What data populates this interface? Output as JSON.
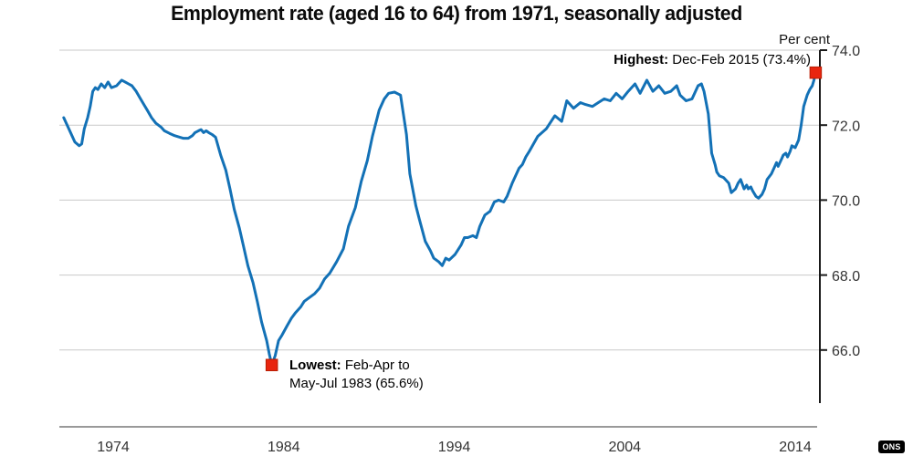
{
  "header": {
    "title": "Employment rate (aged 16 to 64) from 1971, seasonally adjusted",
    "unit_label": "Per cent"
  },
  "annotations": {
    "highest_label": "Highest:",
    "highest_text": " Dec-Feb 2015 (73.4%)",
    "lowest_label": "Lowest:",
    "lowest_text_line1": " Feb-Apr to",
    "lowest_text_line2": "May-Jul 1983 (65.6%)"
  },
  "footer": {
    "logo_text": "ONS"
  },
  "colors": {
    "line": "#1371b6",
    "marker": "#e8250f",
    "marker_border": "#b81c02",
    "grid": "#c9c9c9",
    "x_axis": "#999999",
    "y_axis": "#1a1a1a",
    "tick_text": "#333333"
  },
  "chart_data": {
    "type": "line",
    "title": "Employment rate (aged 16 to 64) from 1971, seasonally adjusted",
    "xlabel": "",
    "ylabel": "Per cent",
    "x_ticks": [
      "1974",
      "1984",
      "1994",
      "2004",
      "2014"
    ],
    "y_ticks": [
      "74.0",
      "72.0",
      "70.0",
      "68.0",
      "66.0"
    ],
    "xlim": [
      1971,
      2015.6
    ],
    "ylim": [
      64.6,
      74.0
    ],
    "grid": true,
    "legend": false,
    "markers": [
      {
        "name": "highest",
        "year": 2015.2,
        "value": 73.4,
        "label": "Dec-Feb 2015 (73.4%)"
      },
      {
        "name": "lowest",
        "year": 1983.3,
        "value": 65.6,
        "label": "Feb-Apr to May-Jul 1983 (65.6%)"
      }
    ],
    "points": [
      [
        1971.1,
        72.2
      ],
      [
        1971.4,
        71.9
      ],
      [
        1971.75,
        71.55
      ],
      [
        1972.0,
        71.45
      ],
      [
        1972.15,
        71.5
      ],
      [
        1972.3,
        71.9
      ],
      [
        1972.5,
        72.2
      ],
      [
        1972.65,
        72.5
      ],
      [
        1972.8,
        72.9
      ],
      [
        1972.95,
        73.0
      ],
      [
        1973.1,
        72.95
      ],
      [
        1973.3,
        73.1
      ],
      [
        1973.5,
        73.0
      ],
      [
        1973.7,
        73.15
      ],
      [
        1973.9,
        73.0
      ],
      [
        1974.2,
        73.05
      ],
      [
        1974.5,
        73.2
      ],
      [
        1974.7,
        73.15
      ],
      [
        1974.9,
        73.1
      ],
      [
        1975.1,
        73.05
      ],
      [
        1975.35,
        72.9
      ],
      [
        1975.6,
        72.7
      ],
      [
        1975.8,
        72.55
      ],
      [
        1976.0,
        72.4
      ],
      [
        1976.25,
        72.2
      ],
      [
        1976.5,
        72.05
      ],
      [
        1976.8,
        71.95
      ],
      [
        1977.0,
        71.85
      ],
      [
        1977.3,
        71.78
      ],
      [
        1977.6,
        71.72
      ],
      [
        1977.9,
        71.68
      ],
      [
        1978.1,
        71.65
      ],
      [
        1978.4,
        71.65
      ],
      [
        1978.65,
        71.72
      ],
      [
        1978.8,
        71.8
      ],
      [
        1979.0,
        71.85
      ],
      [
        1979.15,
        71.88
      ],
      [
        1979.3,
        71.8
      ],
      [
        1979.45,
        71.85
      ],
      [
        1979.6,
        71.8
      ],
      [
        1979.8,
        71.75
      ],
      [
        1980.0,
        71.68
      ],
      [
        1980.3,
        71.2
      ],
      [
        1980.6,
        70.8
      ],
      [
        1980.85,
        70.3
      ],
      [
        1981.1,
        69.75
      ],
      [
        1981.4,
        69.25
      ],
      [
        1981.65,
        68.75
      ],
      [
        1981.9,
        68.25
      ],
      [
        1982.2,
        67.8
      ],
      [
        1982.45,
        67.3
      ],
      [
        1982.7,
        66.75
      ],
      [
        1983.0,
        66.25
      ],
      [
        1983.15,
        65.9
      ],
      [
        1983.3,
        65.6
      ],
      [
        1983.5,
        65.85
      ],
      [
        1983.7,
        66.25
      ],
      [
        1983.9,
        66.4
      ],
      [
        1984.2,
        66.65
      ],
      [
        1984.45,
        66.85
      ],
      [
        1984.7,
        67.0
      ],
      [
        1985.0,
        67.15
      ],
      [
        1985.2,
        67.3
      ],
      [
        1985.5,
        67.4
      ],
      [
        1985.8,
        67.5
      ],
      [
        1986.1,
        67.65
      ],
      [
        1986.4,
        67.9
      ],
      [
        1986.7,
        68.05
      ],
      [
        1987.1,
        68.35
      ],
      [
        1987.5,
        68.7
      ],
      [
        1987.8,
        69.3
      ],
      [
        1988.2,
        69.8
      ],
      [
        1988.55,
        70.5
      ],
      [
        1988.9,
        71.05
      ],
      [
        1989.2,
        71.7
      ],
      [
        1989.6,
        72.4
      ],
      [
        1989.9,
        72.7
      ],
      [
        1990.15,
        72.85
      ],
      [
        1990.5,
        72.88
      ],
      [
        1990.85,
        72.8
      ],
      [
        1991.2,
        71.75
      ],
      [
        1991.4,
        70.7
      ],
      [
        1991.75,
        69.85
      ],
      [
        1991.95,
        69.5
      ],
      [
        1992.3,
        68.9
      ],
      [
        1992.6,
        68.65
      ],
      [
        1992.8,
        68.45
      ],
      [
        1993.1,
        68.35
      ],
      [
        1993.3,
        68.25
      ],
      [
        1993.5,
        68.45
      ],
      [
        1993.7,
        68.4
      ],
      [
        1994.05,
        68.55
      ],
      [
        1994.4,
        68.8
      ],
      [
        1994.6,
        69.0
      ],
      [
        1994.8,
        69.0
      ],
      [
        1995.1,
        69.05
      ],
      [
        1995.3,
        69.0
      ],
      [
        1995.5,
        69.3
      ],
      [
        1995.8,
        69.6
      ],
      [
        1996.1,
        69.7
      ],
      [
        1996.35,
        69.95
      ],
      [
        1996.6,
        70.0
      ],
      [
        1996.9,
        69.95
      ],
      [
        1997.1,
        70.1
      ],
      [
        1997.4,
        70.45
      ],
      [
        1997.8,
        70.85
      ],
      [
        1998.0,
        70.95
      ],
      [
        1998.2,
        71.15
      ],
      [
        1998.4,
        71.3
      ],
      [
        1998.9,
        71.7
      ],
      [
        1999.4,
        71.9
      ],
      [
        1999.9,
        72.25
      ],
      [
        2000.3,
        72.1
      ],
      [
        2000.6,
        72.65
      ],
      [
        2001.0,
        72.45
      ],
      [
        2001.4,
        72.6
      ],
      [
        2001.7,
        72.55
      ],
      [
        2002.1,
        72.5
      ],
      [
        2002.45,
        72.6
      ],
      [
        2002.8,
        72.7
      ],
      [
        2003.15,
        72.65
      ],
      [
        2003.5,
        72.85
      ],
      [
        2003.85,
        72.7
      ],
      [
        2004.2,
        72.9
      ],
      [
        2004.6,
        73.1
      ],
      [
        2004.9,
        72.85
      ],
      [
        2005.3,
        73.2
      ],
      [
        2005.65,
        72.9
      ],
      [
        2006.0,
        73.05
      ],
      [
        2006.35,
        72.85
      ],
      [
        2006.7,
        72.9
      ],
      [
        2007.05,
        73.05
      ],
      [
        2007.25,
        72.8
      ],
      [
        2007.6,
        72.65
      ],
      [
        2007.95,
        72.7
      ],
      [
        2008.3,
        73.05
      ],
      [
        2008.5,
        73.1
      ],
      [
        2008.65,
        72.9
      ],
      [
        2008.9,
        72.3
      ],
      [
        2009.1,
        71.25
      ],
      [
        2009.3,
        70.95
      ],
      [
        2009.4,
        70.75
      ],
      [
        2009.55,
        70.65
      ],
      [
        2009.8,
        70.6
      ],
      [
        2010.1,
        70.45
      ],
      [
        2010.25,
        70.2
      ],
      [
        2010.5,
        70.3
      ],
      [
        2010.65,
        70.45
      ],
      [
        2010.8,
        70.55
      ],
      [
        2011.0,
        70.3
      ],
      [
        2011.15,
        70.4
      ],
      [
        2011.25,
        70.3
      ],
      [
        2011.4,
        70.35
      ],
      [
        2011.5,
        70.25
      ],
      [
        2011.7,
        70.1
      ],
      [
        2011.85,
        70.05
      ],
      [
        2012.05,
        70.15
      ],
      [
        2012.2,
        70.3
      ],
      [
        2012.35,
        70.55
      ],
      [
        2012.6,
        70.7
      ],
      [
        2012.75,
        70.85
      ],
      [
        2012.9,
        71.0
      ],
      [
        2013.0,
        70.9
      ],
      [
        2013.2,
        71.1
      ],
      [
        2013.3,
        71.2
      ],
      [
        2013.45,
        71.25
      ],
      [
        2013.55,
        71.15
      ],
      [
        2013.7,
        71.3
      ],
      [
        2013.8,
        71.45
      ],
      [
        2014.0,
        71.4
      ],
      [
        2014.2,
        71.6
      ],
      [
        2014.35,
        72.0
      ],
      [
        2014.5,
        72.5
      ],
      [
        2014.7,
        72.8
      ],
      [
        2014.85,
        72.95
      ],
      [
        2015.0,
        73.05
      ],
      [
        2015.1,
        73.2
      ],
      [
        2015.2,
        73.4
      ]
    ]
  }
}
